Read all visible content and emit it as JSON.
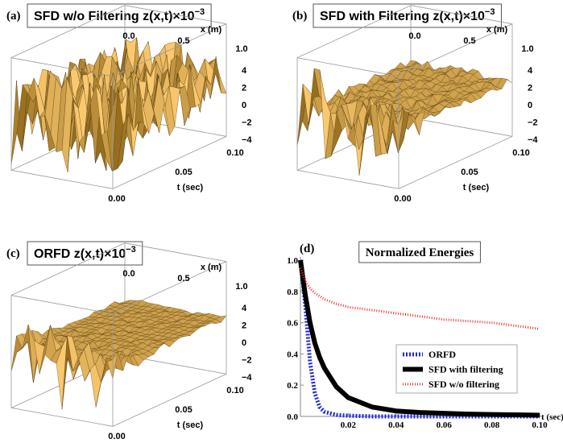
{
  "panels": [
    {
      "label": "(a)",
      "title": "SFD w/o Filtering z(x,t)×10",
      "title_exp": "−3",
      "x_label": "x (m)",
      "x_ticks": [
        "0.0",
        "0.5",
        "1.0"
      ],
      "z_ticks": [
        "4",
        "2",
        "0",
        "−2",
        "−4"
      ],
      "t_label": "t (sec)",
      "t_ticks": [
        "0.00",
        "0.05",
        "0.10"
      ]
    },
    {
      "label": "(b)",
      "title": "SFD with Filtering z(x,t)×10",
      "title_exp": "−3",
      "x_label": "x (m)",
      "x_ticks": [
        "0.0",
        "0.5",
        "1.0"
      ],
      "z_ticks": [
        "4",
        "2",
        "0",
        "−2",
        "−4"
      ],
      "t_label": "t (sec)",
      "t_ticks": [
        "0.00",
        "0.05",
        "0.10"
      ]
    },
    {
      "label": "(c)",
      "title": "ORFD z(x,t)×10",
      "title_exp": "−3",
      "x_label": "x (m)",
      "x_ticks": [
        "0.0",
        "0.5",
        "1.0"
      ],
      "z_ticks": [
        "4",
        "2",
        "0",
        "−2",
        "−4"
      ],
      "t_label": "t (sec)",
      "t_ticks": [
        "0.00",
        "0.05",
        "0.10"
      ]
    }
  ],
  "chart_data": {
    "type": "line",
    "label": "(d)",
    "title": "Normalized Energies",
    "x_label": "t (sec)",
    "x": [
      0,
      0.002,
      0.004,
      0.006,
      0.008,
      0.01,
      0.015,
      0.02,
      0.03,
      0.04,
      0.05,
      0.06,
      0.07,
      0.08,
      0.09,
      0.1
    ],
    "series": [
      {
        "name": "ORFD",
        "color": "#1f2be0",
        "values": [
          1.0,
          0.72,
          0.35,
          0.15,
          0.06,
          0.03,
          0.01,
          0.005,
          0,
          0,
          0,
          0,
          0,
          0,
          0,
          0
        ]
      },
      {
        "name": "SFD with filtering",
        "color": "#000000",
        "values": [
          1.0,
          0.78,
          0.6,
          0.47,
          0.38,
          0.31,
          0.19,
          0.12,
          0.06,
          0.035,
          0.025,
          0.02,
          0.015,
          0.012,
          0.01,
          0.008
        ]
      },
      {
        "name": "SFD w/o filtering",
        "color": "#e8342c",
        "values": [
          0.95,
          0.87,
          0.82,
          0.79,
          0.77,
          0.75,
          0.72,
          0.7,
          0.68,
          0.66,
          0.64,
          0.62,
          0.61,
          0.6,
          0.58,
          0.56
        ]
      }
    ],
    "xlim": [
      0,
      0.1
    ],
    "ylim": [
      0,
      1.0
    ],
    "xticks": [
      0.02,
      0.04,
      0.06,
      0.08,
      {
        "value": 0.1,
        "label": "0.10"
      }
    ],
    "yticks": [
      {
        "value": 0,
        "label": "0.0"
      },
      0.2,
      0.4,
      0.6,
      0.8,
      {
        "value": 1,
        "label": "1.0"
      }
    ],
    "legend": "lower right"
  }
}
